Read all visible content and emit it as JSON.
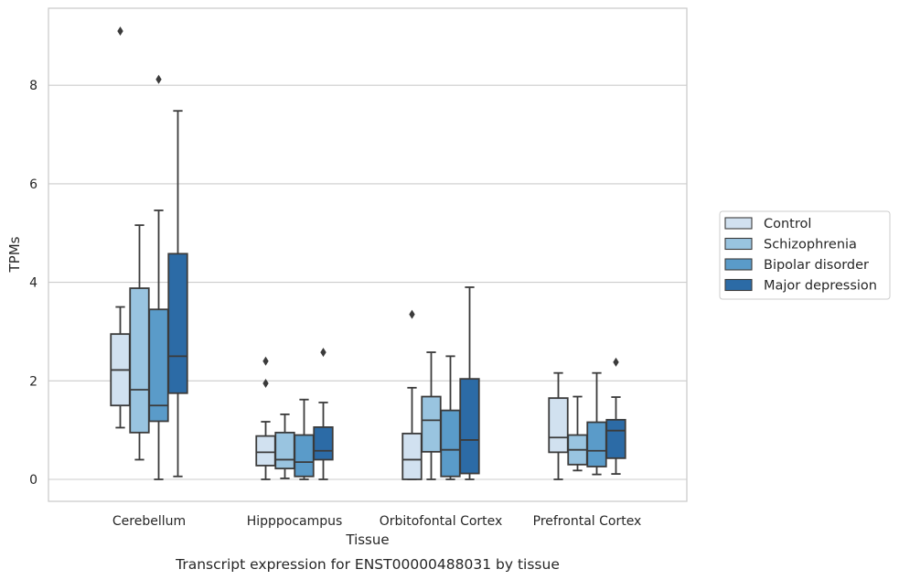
{
  "chart_data": {
    "type": "boxplot",
    "xlabel": "Tissue",
    "ylabel": "TPMs",
    "caption": "Transcript expression for ENST00000488031 by tissue",
    "ylim": [
      -0.45,
      9.6
    ],
    "yticks": [
      0,
      2,
      4,
      6,
      8
    ],
    "grid": "horizontal",
    "legend_position": "right",
    "categories": [
      "Cerebellum",
      "Hipppocampus",
      "Orbitofontal Cortex",
      "Prefrontal Cortex"
    ],
    "series": [
      {
        "name": "Control",
        "color": "#d1e1f0",
        "boxes": [
          {
            "whislo": 1.05,
            "q1": 1.5,
            "med": 2.22,
            "q3": 2.95,
            "whishi": 3.5,
            "fliers": [
              9.1
            ]
          },
          {
            "whislo": 0.0,
            "q1": 0.28,
            "med": 0.55,
            "q3": 0.88,
            "whishi": 1.17,
            "fliers": [
              1.95,
              2.4
            ]
          },
          {
            "whislo": 0.0,
            "q1": 0.0,
            "med": 0.4,
            "q3": 0.93,
            "whishi": 1.86,
            "fliers": [
              3.35
            ]
          },
          {
            "whislo": 0.0,
            "q1": 0.55,
            "med": 0.85,
            "q3": 1.65,
            "whishi": 2.16,
            "fliers": []
          }
        ]
      },
      {
        "name": "Schizophrenia",
        "color": "#99c4e0",
        "boxes": [
          {
            "whislo": 0.4,
            "q1": 0.95,
            "med": 1.82,
            "q3": 3.88,
            "whishi": 5.16,
            "fliers": []
          },
          {
            "whislo": 0.02,
            "q1": 0.22,
            "med": 0.4,
            "q3": 0.95,
            "whishi": 1.32,
            "fliers": []
          },
          {
            "whislo": 0.0,
            "q1": 0.56,
            "med": 1.2,
            "q3": 1.68,
            "whishi": 2.58,
            "fliers": []
          },
          {
            "whislo": 0.18,
            "q1": 0.3,
            "med": 0.6,
            "q3": 0.9,
            "whishi": 1.68,
            "fliers": []
          }
        ]
      },
      {
        "name": "Bipolar disorder",
        "color": "#5a9bc9",
        "boxes": [
          {
            "whislo": 0.0,
            "q1": 1.18,
            "med": 1.5,
            "q3": 3.45,
            "whishi": 5.46,
            "fliers": [
              8.12
            ]
          },
          {
            "whislo": 0.0,
            "q1": 0.06,
            "med": 0.35,
            "q3": 0.9,
            "whishi": 1.62,
            "fliers": []
          },
          {
            "whislo": 0.0,
            "q1": 0.06,
            "med": 0.6,
            "q3": 1.4,
            "whishi": 2.5,
            "fliers": []
          },
          {
            "whislo": 0.1,
            "q1": 0.26,
            "med": 0.58,
            "q3": 1.16,
            "whishi": 2.16,
            "fliers": []
          }
        ]
      },
      {
        "name": "Major depression",
        "color": "#2c6ba6",
        "boxes": [
          {
            "whislo": 0.06,
            "q1": 1.75,
            "med": 2.5,
            "q3": 4.58,
            "whishi": 7.48,
            "fliers": []
          },
          {
            "whislo": 0.0,
            "q1": 0.4,
            "med": 0.58,
            "q3": 1.06,
            "whishi": 1.56,
            "fliers": [
              2.58
            ]
          },
          {
            "whislo": 0.0,
            "q1": 0.12,
            "med": 0.8,
            "q3": 2.04,
            "whishi": 3.9,
            "fliers": []
          },
          {
            "whislo": 0.11,
            "q1": 0.43,
            "med": 0.99,
            "q3": 1.21,
            "whishi": 1.67,
            "fliers": [
              2.38
            ]
          }
        ]
      }
    ]
  }
}
